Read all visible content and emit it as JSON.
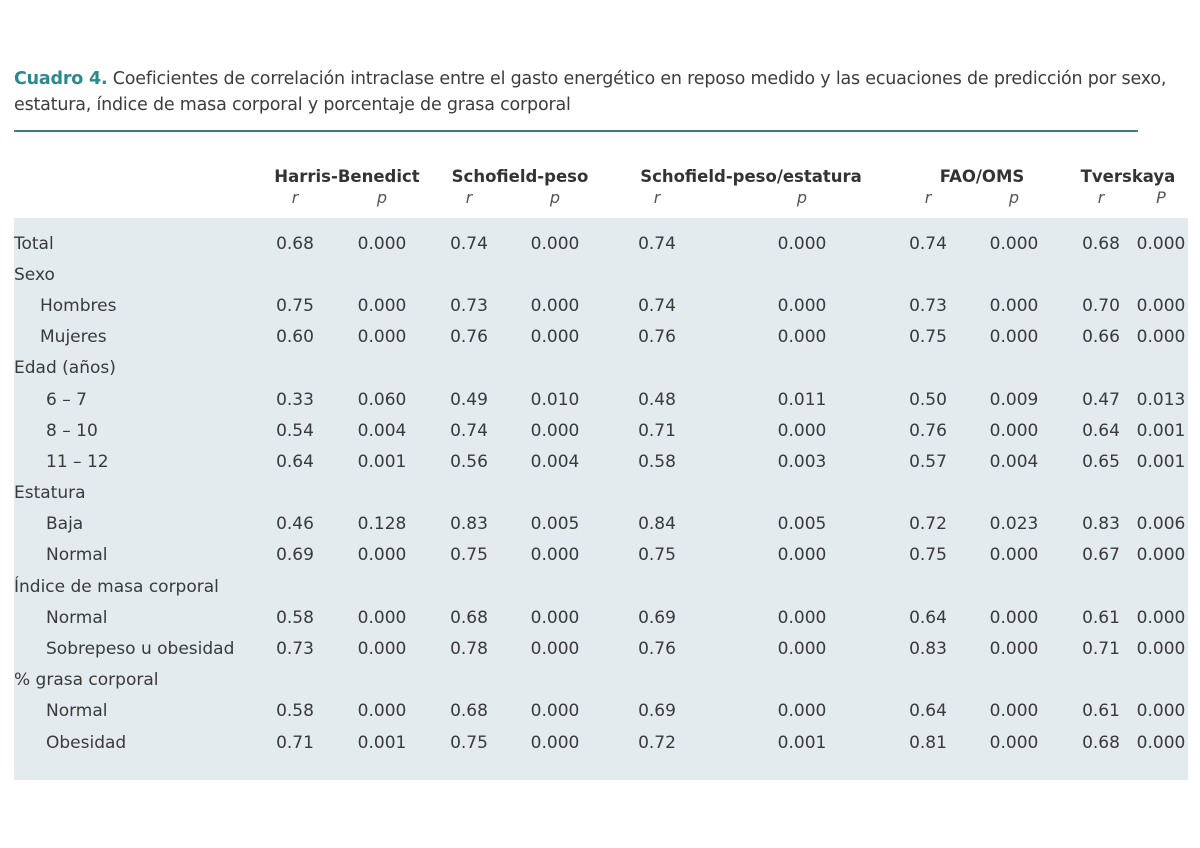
{
  "caption": {
    "label": "Cuadro 4.",
    "text": " Coeficientes de correlación intraclase entre el gasto energético en reposo medido y las ecuaciones de predicción por sexo, estatura, índice de masa corporal y porcentaje de grasa corporal"
  },
  "colors": {
    "caption_label": "#2c8a8c",
    "rule": "#3f7f7a",
    "table_body_bg": "#e3ebef",
    "text": "#3a3a3a"
  },
  "table": {
    "groups": [
      "Harris-Benedict",
      "Schofield-peso",
      "Schofield-peso/estatura",
      "FAO/OMS",
      "Tverskaya"
    ],
    "subheaders": [
      "r",
      "p",
      "r",
      "p",
      "r",
      "p",
      "r",
      "p",
      "r",
      "P"
    ],
    "rows": [
      {
        "label": "Total",
        "type": "data",
        "values": [
          "0.68",
          "0.000",
          "0.74",
          "0.000",
          "0.74",
          "0.000",
          "0.74",
          "0.000",
          "0.68",
          "0.000"
        ]
      },
      {
        "label": "Sexo",
        "type": "section"
      },
      {
        "label": "Hombres",
        "type": "data",
        "indent": 1,
        "values": [
          "0.75",
          "0.000",
          "0.73",
          "0.000",
          "0.74",
          "0.000",
          "0.73",
          "0.000",
          "0.70",
          "0.000"
        ]
      },
      {
        "label": "Mujeres",
        "type": "data",
        "indent": 1,
        "values": [
          "0.60",
          "0.000",
          "0.76",
          "0.000",
          "0.76",
          "0.000",
          "0.75",
          "0.000",
          "0.66",
          "0.000"
        ]
      },
      {
        "label": "Edad (años)",
        "type": "section"
      },
      {
        "label": "6 – 7",
        "type": "data",
        "indent": 2,
        "values": [
          "0.33",
          "0.060",
          "0.49",
          "0.010",
          "0.48",
          "0.011",
          "0.50",
          "0.009",
          "0.47",
          "0.013"
        ]
      },
      {
        "label": "8 – 10",
        "type": "data",
        "indent": 2,
        "values": [
          "0.54",
          "0.004",
          "0.74",
          "0.000",
          "0.71",
          "0.000",
          "0.76",
          "0.000",
          "0.64",
          "0.001"
        ]
      },
      {
        "label": "11 – 12",
        "type": "data",
        "indent": 2,
        "values": [
          "0.64",
          "0.001",
          "0.56",
          "0.004",
          "0.58",
          "0.003",
          "0.57",
          "0.004",
          "0.65",
          "0.001"
        ]
      },
      {
        "label": "Estatura",
        "type": "section"
      },
      {
        "label": "Baja",
        "type": "data",
        "indent": 2,
        "values": [
          "0.46",
          "0.128",
          "0.83",
          "0.005",
          "0.84",
          "0.005",
          "0.72",
          "0.023",
          "0.83",
          "0.006"
        ]
      },
      {
        "label": "Normal",
        "type": "data",
        "indent": 2,
        "values": [
          "0.69",
          "0.000",
          "0.75",
          "0.000",
          "0.75",
          "0.000",
          "0.75",
          "0.000",
          "0.67",
          "0.000"
        ]
      },
      {
        "label": "Índice de masa corporal",
        "type": "section"
      },
      {
        "label": "Normal",
        "type": "data",
        "indent": 2,
        "values": [
          "0.58",
          "0.000",
          "0.68",
          "0.000",
          "0.69",
          "0.000",
          "0.64",
          "0.000",
          "0.61",
          "0.000"
        ]
      },
      {
        "label": "Sobrepeso u obesidad",
        "type": "data",
        "indent": 2,
        "values": [
          "0.73",
          "0.000",
          "0.78",
          "0.000",
          "0.76",
          "0.000",
          "0.83",
          "0.000",
          "0.71",
          "0.000"
        ]
      },
      {
        "label": "% grasa corporal",
        "type": "section"
      },
      {
        "label": "Normal",
        "type": "data",
        "indent": 2,
        "values": [
          "0.58",
          "0.000",
          "0.68",
          "0.000",
          "0.69",
          "0.000",
          "0.64",
          "0.000",
          "0.61",
          "0.000"
        ]
      },
      {
        "label": "Obesidad",
        "type": "data",
        "indent": 2,
        "values": [
          "0.71",
          "0.001",
          "0.75",
          "0.000",
          "0.72",
          "0.001",
          "0.81",
          "0.000",
          "0.68",
          "0.000"
        ]
      }
    ]
  }
}
